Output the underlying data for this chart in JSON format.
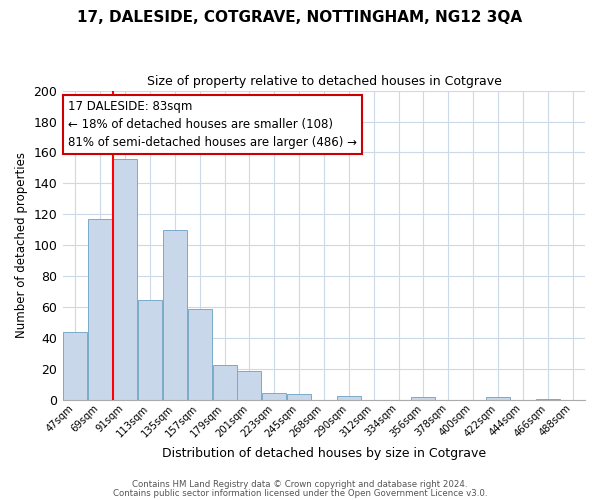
{
  "title": "17, DALESIDE, COTGRAVE, NOTTINGHAM, NG12 3QA",
  "subtitle": "Size of property relative to detached houses in Cotgrave",
  "xlabel": "Distribution of detached houses by size in Cotgrave",
  "ylabel": "Number of detached properties",
  "bar_labels": [
    "47sqm",
    "69sqm",
    "91sqm",
    "113sqm",
    "135sqm",
    "157sqm",
    "179sqm",
    "201sqm",
    "223sqm",
    "245sqm",
    "268sqm",
    "290sqm",
    "312sqm",
    "334sqm",
    "356sqm",
    "378sqm",
    "400sqm",
    "422sqm",
    "444sqm",
    "466sqm",
    "488sqm"
  ],
  "bar_heights": [
    44,
    117,
    156,
    65,
    110,
    59,
    23,
    19,
    5,
    4,
    0,
    3,
    0,
    0,
    2,
    0,
    0,
    2,
    0,
    1,
    0
  ],
  "bar_color": "#c8d8ea",
  "bar_edge_color": "#7aaaca",
  "redline_index": 2,
  "ylim": [
    0,
    200
  ],
  "yticks": [
    0,
    20,
    40,
    60,
    80,
    100,
    120,
    140,
    160,
    180,
    200
  ],
  "annotation_line1": "17 DALESIDE: 83sqm",
  "annotation_line2": "← 18% of detached houses are smaller (108)",
  "annotation_line3": "81% of semi-detached houses are larger (486) →",
  "annotation_box_color": "#ffffff",
  "annotation_box_edge": "#cc0000",
  "footer1": "Contains HM Land Registry data © Crown copyright and database right 2024.",
  "footer2": "Contains public sector information licensed under the Open Government Licence v3.0.",
  "background_color": "#ffffff",
  "grid_color": "#ccd9e8"
}
